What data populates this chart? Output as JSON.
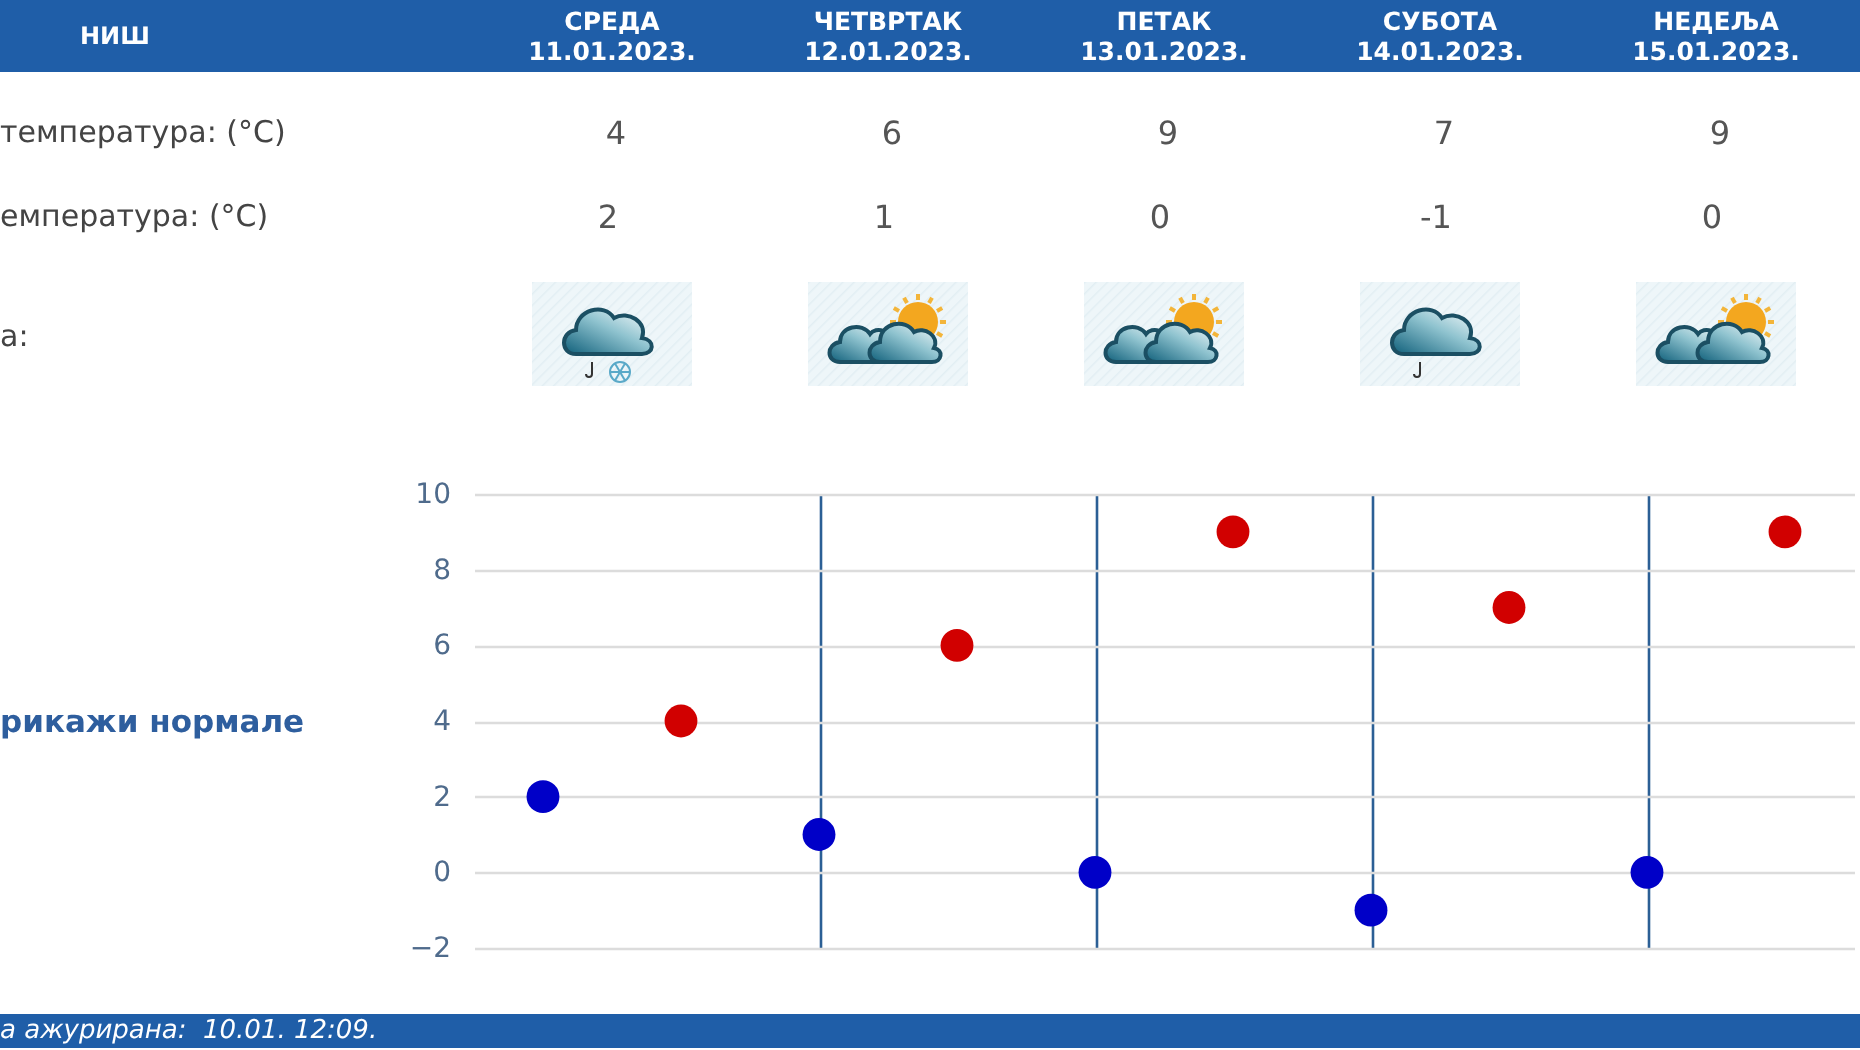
{
  "chart_data": {
    "type": "scatter",
    "title": "НИШ",
    "categories": [
      null,
      null,
      null,
      null,
      null,
      null,
      null,
      null,
      null,
      null
    ],
    "series": [
      {
        "color": "#d10000",
        "values": [
          null,
          4,
          null,
          6,
          null,
          9,
          null,
          7,
          null,
          9
        ]
      },
      {
        "color": "#0000c8",
        "values": [
          2,
          null,
          1,
          null,
          0,
          null,
          -1,
          null,
          0,
          null
        ]
      }
    ],
    "data_labels": true,
    "ylim": [
      -2,
      10
    ],
    "yticks": [
      -2,
      0,
      2,
      4,
      6,
      8,
      10
    ],
    "grid": true,
    "legend": false,
    "marker": "circle",
    "annotations": [
      "СРЕДА\n11.01.2023.",
      "ЧЕТВРТАК\n12.01.2023.",
      "ПЕТАК\n13.01.2023.",
      "СУБОТА\n14.01.2023.",
      "НЕДЕЉА\n15.01.2023.",
      "температура: (°C)",
      "емпература: (°C)",
      "а:",
      "рикажи нормале",
      "а ажурирана:  10.01. 12:09."
    ]
  }
}
